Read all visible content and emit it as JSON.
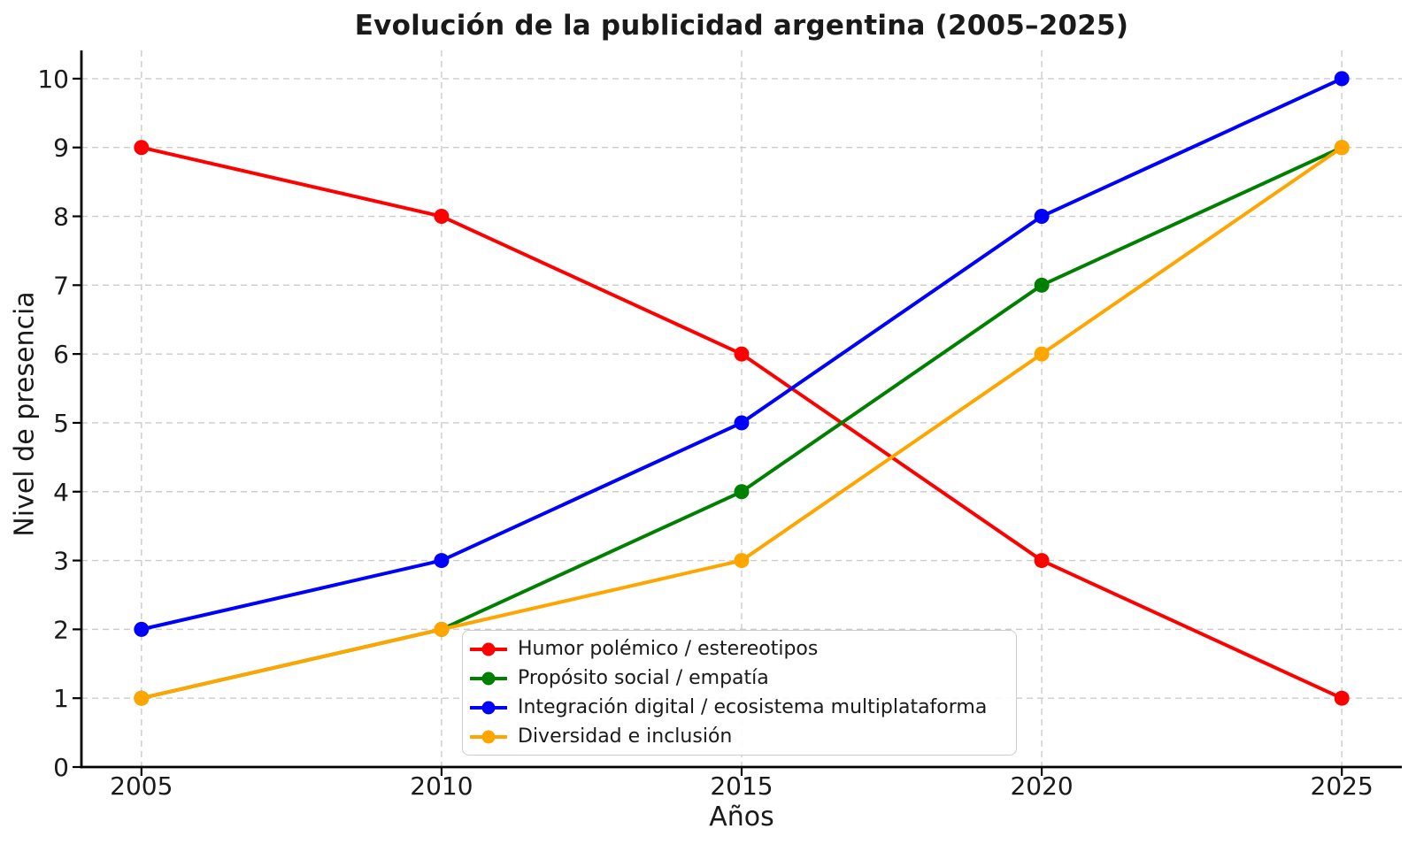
{
  "chart_data": {
    "type": "line",
    "title": "Evolución de la publicidad argentina (2005–2025)",
    "xlabel": "Años",
    "ylabel": "Nivel de presencia",
    "x": [
      2005,
      2010,
      2015,
      2020,
      2025
    ],
    "xticks": [
      2005,
      2010,
      2015,
      2020,
      2025
    ],
    "yticks": [
      0,
      1,
      2,
      3,
      4,
      5,
      6,
      7,
      8,
      9,
      10
    ],
    "xlim": [
      2004,
      2026
    ],
    "ylim": [
      0,
      10.41
    ],
    "grid": true,
    "grid_style": "dashed",
    "legend_position": "lower-center-inside",
    "series": [
      {
        "name": "Humor polémico / estereotipos",
        "color": "#ff0000",
        "values": [
          9,
          8,
          6,
          3,
          1
        ]
      },
      {
        "name": "Propósito social / empatía",
        "color": "#008000",
        "values": [
          1,
          2,
          4,
          7,
          9
        ]
      },
      {
        "name": "Integración digital / ecosistema multiplataforma",
        "color": "#0000ff",
        "values": [
          2,
          3,
          5,
          8,
          10
        ]
      },
      {
        "name": "Diversidad e inclusión",
        "color": "#ffa500",
        "values": [
          1,
          2,
          3,
          6,
          9
        ]
      }
    ],
    "colors": {
      "text": "#1a1a1a",
      "grid": "#cccccc",
      "spine": "#000000",
      "legend_border": "#cccccc",
      "background": "#ffffff"
    }
  }
}
